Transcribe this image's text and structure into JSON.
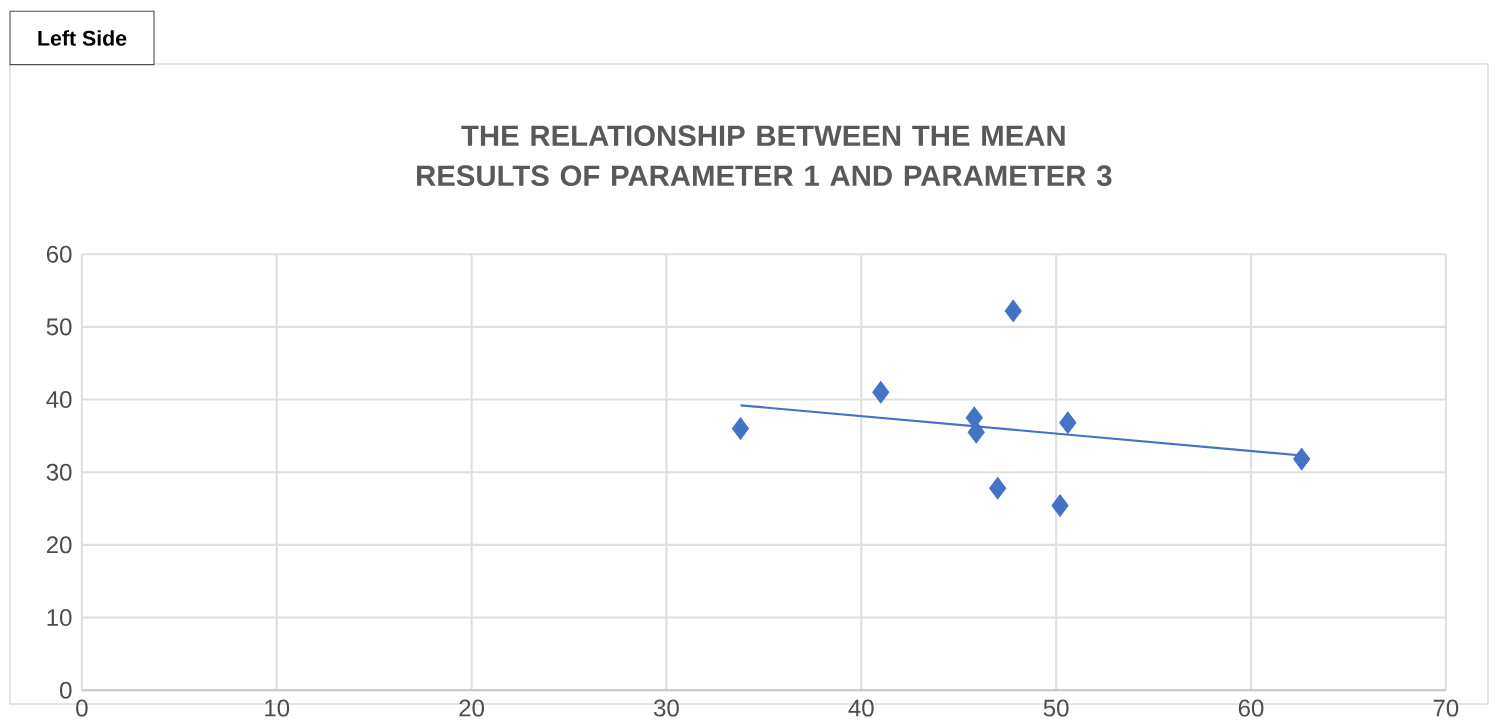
{
  "chart_data": {
    "type": "scatter",
    "title": "THE RELATIONSHIP BETWEEN THE MEAN RESULTS OF PARAMETER 1 AND PARAMETER 3",
    "annotations": [
      "Left Side"
    ],
    "series": [
      {
        "type": "scatter",
        "color": "#4472c4",
        "marker": "diamond",
        "x": [
          33.8,
          41,
          45.8,
          45.9,
          47.8,
          47,
          50.2,
          50.6,
          62.6
        ],
        "values": [
          36,
          41,
          37.5,
          35.5,
          52.2,
          27.8,
          25.4,
          36.8,
          31.8
        ]
      },
      {
        "type": "line",
        "color": "#4472c4",
        "x": [
          33.8,
          62.6
        ],
        "values": [
          39.2,
          32.3
        ]
      }
    ],
    "xlim": [
      0,
      70
    ],
    "xticks": [
      0,
      10,
      20,
      30,
      40,
      50,
      60,
      70
    ],
    "ylim": [
      0,
      60
    ],
    "yticks": [
      0,
      10,
      20,
      30,
      40,
      50,
      60
    ],
    "grid": true
  }
}
